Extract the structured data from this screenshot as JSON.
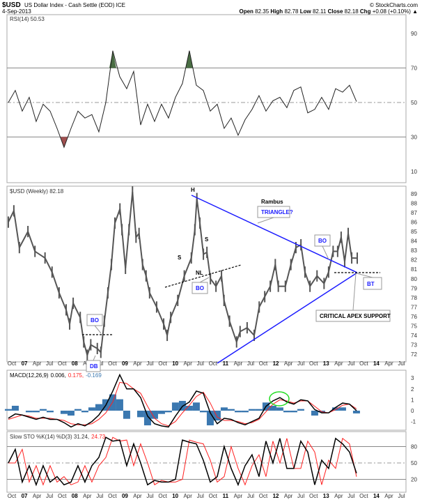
{
  "header": {
    "symbol": "$USD",
    "name": "US Dollar Index - Cash Settle (EOD) ICE",
    "date": "4-Sep-2013",
    "logo": "© StockCharts.com",
    "open_label": "Open",
    "open": "82.35",
    "high_label": "High",
    "high": "82.78",
    "low_label": "Low",
    "low": "82.11",
    "close_label": "Close",
    "close": "82.18",
    "chg_label": "Chg",
    "chg": "+0.08 (+0.10%)"
  },
  "colors": {
    "price": "#555555",
    "trend": "#1a1aff",
    "macd": "#000000",
    "signal": "#ff2020",
    "hist": "#3b78b0",
    "stoK": "#000000",
    "stoD": "#ff2020",
    "rsiOver": "#4a6e44",
    "rsiUnder": "#a05050",
    "ellipse": "#22dd22"
  },
  "chart_data": [
    {
      "type": "line",
      "name": "RSI",
      "title": "RSI(14) 50.53",
      "yticks": [
        90,
        70,
        50,
        30,
        10
      ],
      "ylim": [
        0,
        100
      ],
      "hlines": [
        70,
        50,
        30
      ],
      "x_start": 2006.68,
      "x_step": 0.1385,
      "values": [
        50,
        57,
        45,
        53,
        39,
        49,
        45,
        35,
        24,
        35,
        45,
        41,
        43,
        33,
        50,
        80,
        65,
        58,
        68,
        37,
        49,
        39,
        49,
        41,
        53,
        61,
        80,
        60,
        57,
        45,
        49,
        35,
        41,
        31,
        40,
        46,
        54,
        45,
        51,
        53,
        47,
        57,
        59,
        44,
        46,
        53,
        46,
        58,
        56,
        60,
        50.53
      ]
    },
    {
      "type": "line",
      "name": "Price",
      "title": "$USD (Weekly) 82.18",
      "yticks": [
        72,
        73,
        74,
        75,
        76,
        77,
        78,
        79,
        80,
        81,
        82,
        83,
        84,
        85,
        86,
        87,
        88,
        89
      ],
      "ylim": [
        71.3,
        89.8
      ],
      "points": [
        [
          2006.68,
          86
        ],
        [
          2006.79,
          87.2
        ],
        [
          2006.9,
          83.3
        ],
        [
          2007.07,
          85
        ],
        [
          2007.21,
          82.9
        ],
        [
          2007.41,
          82.2
        ],
        [
          2007.55,
          80.7
        ],
        [
          2007.69,
          78.5
        ],
        [
          2007.83,
          76.7
        ],
        [
          2007.9,
          75.2
        ],
        [
          2007.97,
          77.4
        ],
        [
          2008.11,
          75.9
        ],
        [
          2008.18,
          73.3
        ],
        [
          2008.25,
          71.9
        ],
        [
          2008.32,
          73
        ],
        [
          2008.45,
          72.6
        ],
        [
          2008.52,
          72.2
        ],
        [
          2008.59,
          75.5
        ],
        [
          2008.66,
          78.5
        ],
        [
          2008.73,
          81.5
        ],
        [
          2008.8,
          85.9
        ],
        [
          2008.9,
          87.4
        ],
        [
          2008.94,
          85.2
        ],
        [
          2009.01,
          81.1
        ],
        [
          2009.08,
          85.2
        ],
        [
          2009.15,
          89.2
        ],
        [
          2009.22,
          84.4
        ],
        [
          2009.28,
          84.8
        ],
        [
          2009.35,
          81.5
        ],
        [
          2009.42,
          80.3
        ],
        [
          2009.49,
          78.5
        ],
        [
          2009.63,
          77
        ],
        [
          2009.77,
          75.2
        ],
        [
          2009.84,
          74
        ],
        [
          2009.91,
          75.9
        ],
        [
          2010.05,
          77.7
        ],
        [
          2010.18,
          80.3
        ],
        [
          2010.32,
          82.2
        ],
        [
          2010.39,
          85.2
        ],
        [
          2010.43,
          88.5
        ],
        [
          2010.49,
          85.9
        ],
        [
          2010.56,
          82.6
        ],
        [
          2010.63,
          82.8
        ],
        [
          2010.7,
          80
        ],
        [
          2010.81,
          79.2
        ],
        [
          2010.92,
          80.3
        ],
        [
          2010.97,
          77.7
        ],
        [
          2011.08,
          75.5
        ],
        [
          2011.22,
          73.3
        ],
        [
          2011.29,
          74.4
        ],
        [
          2011.43,
          74.8
        ],
        [
          2011.57,
          74
        ],
        [
          2011.67,
          77
        ],
        [
          2011.78,
          78.1
        ],
        [
          2011.89,
          79.2
        ],
        [
          2011.99,
          81.5
        ],
        [
          2012.05,
          79.2
        ],
        [
          2012.19,
          79.2
        ],
        [
          2012.3,
          81.5
        ],
        [
          2012.4,
          83.3
        ],
        [
          2012.5,
          83.6
        ],
        [
          2012.58,
          80.7
        ],
        [
          2012.68,
          79.2
        ],
        [
          2012.82,
          80.3
        ],
        [
          2012.96,
          79.5
        ],
        [
          2013.05,
          80.7
        ],
        [
          2013.14,
          82.9
        ],
        [
          2013.23,
          82.9
        ],
        [
          2013.3,
          84.4
        ],
        [
          2013.37,
          81.8
        ],
        [
          2013.44,
          84.8
        ],
        [
          2013.51,
          82.2
        ],
        [
          2013.62,
          82.18
        ]
      ]
    },
    {
      "type": "line",
      "name": "MACD",
      "title": "MACD(12,26,9)",
      "macd_val": "0.006,",
      "signal_val": "0.175,",
      "hist_val": "-0.169",
      "yticks": [
        3,
        2,
        1,
        0,
        -1
      ],
      "ylim": [
        -2,
        3.7
      ],
      "x_start": 2006.68,
      "x_step": 0.1385,
      "macd": [
        -0.7,
        -0.3,
        -0.4,
        -0.6,
        -0.8,
        -0.6,
        -0.8,
        -0.8,
        -1.1,
        -1.5,
        -1.2,
        -1.4,
        -1.0,
        -0.4,
        0.5,
        1.8,
        3.3,
        2.0,
        2.0,
        1.2,
        -0.5,
        -1.2,
        -1.4,
        -1.5,
        -0.5,
        0.4,
        0.8,
        1.8,
        1.6,
        -0.2,
        -1.2,
        -0.7,
        -0.8,
        -1.1,
        -1.3,
        -1.0,
        -0.7,
        0.4,
        0.9,
        1.2,
        0.8,
        0.6,
        1.0,
        0.9,
        0.1,
        -0.2,
        -0.2,
        0.3,
        0.7,
        0.6,
        0.006
      ],
      "signal": [
        -0.8,
        -0.6,
        -0.4,
        -0.5,
        -0.7,
        -0.7,
        -0.7,
        -0.8,
        -0.9,
        -1.2,
        -1.3,
        -1.3,
        -1.2,
        -0.8,
        -0.2,
        0.8,
        2.6,
        2.5,
        2.0,
        1.6,
        0.4,
        -0.7,
        -1.2,
        -1.4,
        -1.0,
        -0.2,
        0.5,
        1.3,
        1.7,
        0.7,
        -0.6,
        -0.9,
        -0.9,
        -1.0,
        -1.2,
        -1.1,
        -0.8,
        -0.1,
        0.6,
        1.0,
        0.9,
        0.7,
        0.9,
        0.9,
        0.4,
        -0.1,
        -0.2,
        0.1,
        0.5,
        0.6,
        0.175
      ]
    },
    {
      "type": "line",
      "name": "Slow STO",
      "title": "Slow STO %K(14) %D(3) 31.24,",
      "d_val": "24.73",
      "yticks": [
        80,
        50,
        20
      ],
      "ylim": [
        0,
        105
      ],
      "hlines": [
        80,
        50,
        20
      ],
      "x_start": 2006.68,
      "x_step": 0.1385,
      "k": [
        50,
        75,
        15,
        45,
        10,
        45,
        15,
        25,
        10,
        15,
        45,
        15,
        45,
        60,
        97,
        90,
        92,
        45,
        85,
        50,
        10,
        18,
        15,
        15,
        20,
        92,
        88,
        85,
        55,
        15,
        25,
        80,
        40,
        10,
        45,
        65,
        25,
        90,
        50,
        95,
        40,
        40,
        90,
        70,
        10,
        55,
        40,
        95,
        85,
        70,
        31.24
      ],
      "d": [
        50,
        50,
        75,
        15,
        45,
        10,
        45,
        15,
        25,
        10,
        15,
        45,
        15,
        45,
        60,
        97,
        90,
        92,
        45,
        85,
        50,
        10,
        18,
        15,
        15,
        20,
        92,
        88,
        85,
        55,
        15,
        25,
        80,
        40,
        10,
        45,
        65,
        25,
        90,
        50,
        95,
        40,
        40,
        90,
        70,
        10,
        55,
        40,
        95,
        85,
        24.73
      ]
    }
  ],
  "xaxis": {
    "start": 2006.75,
    "step": 0.25,
    "labels": [
      "Oct",
      "07",
      "Apr",
      "Jul",
      "Oct",
      "08",
      "Apr",
      "Jul",
      "Oct",
      "09",
      "Apr",
      "Jul",
      "Oct",
      "10",
      "Apr",
      "Jul",
      "Oct",
      "11",
      "Apr",
      "Jul",
      "Oct",
      "12",
      "Apr",
      "Jul",
      "Oct",
      "13",
      "Apr",
      "Jul",
      "Oct",
      "14",
      "Apr",
      "Jul"
    ]
  },
  "annotations": {
    "H": "H",
    "S1": "S",
    "S2": "S",
    "NL": "NL",
    "BO1": "BO",
    "BO2": "BO",
    "BO3": "BO",
    "DB": "DB",
    "BT": "BT",
    "rambus": "Rambus",
    "triangle": "TRIANGLE?",
    "apex": "CRITICAL APEX SUPPORT"
  }
}
